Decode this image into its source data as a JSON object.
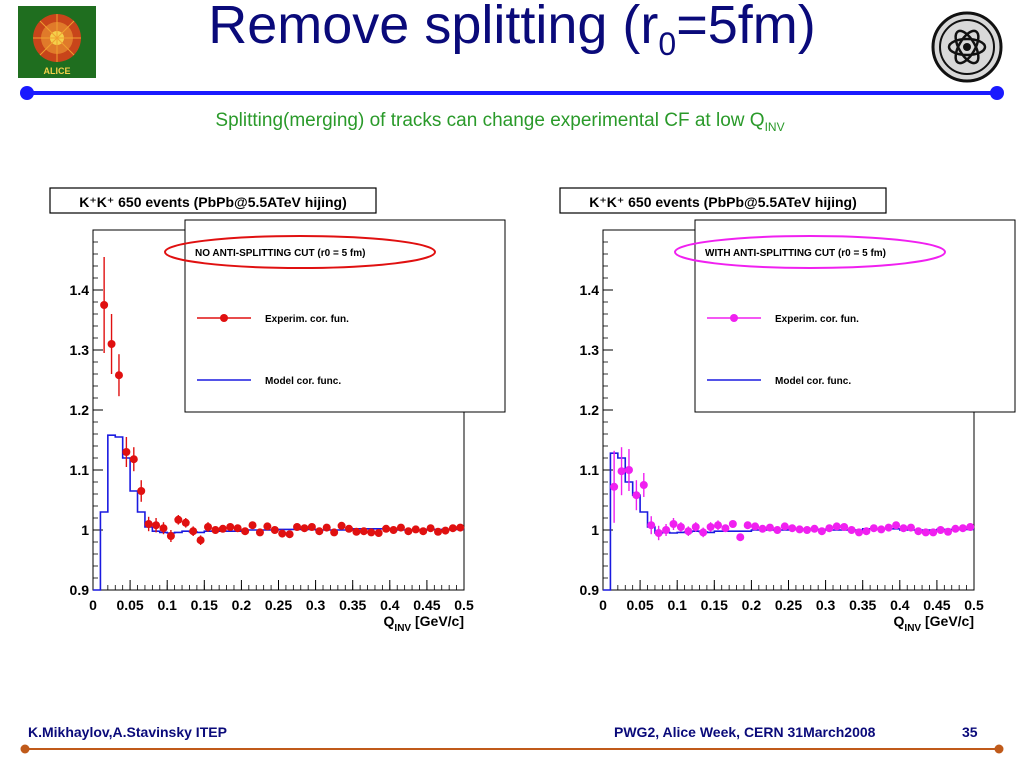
{
  "slide": {
    "title_main": "Remove splitting (r",
    "title_sub": "0",
    "title_end": "=5fm)",
    "subtitle_main": "Splitting(merging) of tracks can change experimental CF at low Q",
    "subtitle_sub": "INV",
    "footer_left": "K.Mikhaylov,A.Stavinsky ITEP",
    "footer_mid": "PWG2, Alice Week, CERN 31March2008",
    "page_number": "35",
    "logo_left_text": "ALICE",
    "colors": {
      "title": "#0a0a7a",
      "subtitle": "#2a9a2a",
      "rule_top": "#1a1aff",
      "rule_bottom": "#c05a1a"
    }
  },
  "chart_data": [
    {
      "type": "scatter",
      "title": "K⁺K⁺ 650 events (PbPb@5.5ATeV hijing)",
      "legend_header": "NO ANTI-SPLITTING CUT (r0 = 5 fm)",
      "xlabel": "Q_INV  [GeV/c]",
      "xlabel_main": "Q",
      "xlabel_sub": "INV",
      "xlabel_unit": "[GeV/c]",
      "xlim": [
        0,
        0.5
      ],
      "ylim": [
        0.9,
        1.5
      ],
      "x_ticks": [
        "0",
        "0.05",
        "0.1",
        "0.15",
        "0.2",
        "0.25",
        "0.3",
        "0.35",
        "0.4",
        "0.45",
        "0.5"
      ],
      "y_ticks": [
        "0.9",
        "1",
        "1.1",
        "1.2",
        "1.3",
        "1.4"
      ],
      "legend_position": "top-right",
      "series": [
        {
          "name": "Experim. cor. fun.",
          "color": "#e01010",
          "x": [
            0.015,
            0.025,
            0.035,
            0.045,
            0.055,
            0.065,
            0.075,
            0.085,
            0.095,
            0.105,
            0.115,
            0.125,
            0.135,
            0.145,
            0.155,
            0.165,
            0.175,
            0.185,
            0.195,
            0.205,
            0.215,
            0.225,
            0.235,
            0.245,
            0.255,
            0.265,
            0.275,
            0.285,
            0.295,
            0.305,
            0.315,
            0.325,
            0.335,
            0.345,
            0.355,
            0.365,
            0.375,
            0.385,
            0.395,
            0.405,
            0.415,
            0.425,
            0.435,
            0.445,
            0.455,
            0.465,
            0.475,
            0.485,
            0.495
          ],
          "y": [
            1.375,
            1.31,
            1.258,
            1.13,
            1.118,
            1.065,
            1.01,
            1.008,
            1.003,
            0.99,
            1.017,
            1.012,
            0.998,
            0.983,
            1.005,
            1.0,
            1.002,
            1.005,
            1.003,
            0.998,
            1.008,
            0.996,
            1.006,
            1.0,
            0.994,
            0.993,
            1.005,
            1.003,
            1.005,
            0.998,
            1.004,
            0.996,
            1.007,
            1.002,
            0.997,
            0.998,
            0.996,
            0.995,
            1.002,
            1.0,
            1.004,
            0.998,
            1.001,
            0.998,
            1.003,
            0.997,
            0.999,
            1.003,
            1.004
          ],
          "err": [
            0.08,
            0.05,
            0.035,
            0.025,
            0.02,
            0.018,
            0.012,
            0.012,
            0.01,
            0.01,
            0.008,
            0.008,
            0.008,
            0.008,
            0.008,
            0.006,
            0.006,
            0.006,
            0.006,
            0.006,
            0.006,
            0.006,
            0.006,
            0.006,
            0.006,
            0.006,
            0.006,
            0.006,
            0.006,
            0.006,
            0.006,
            0.006,
            0.006,
            0.006,
            0.006,
            0.006,
            0.006,
            0.006,
            0.006,
            0.006,
            0.006,
            0.006,
            0.006,
            0.006,
            0.006,
            0.006,
            0.006,
            0.006,
            0.006
          ]
        },
        {
          "name": "Model cor. func.",
          "color": "#1a1ae0",
          "edges": [
            0,
            0.01,
            0.02,
            0.03,
            0.04,
            0.05,
            0.06,
            0.07,
            0.08,
            0.09,
            0.1,
            0.11,
            0.12,
            0.13,
            0.14,
            0.15,
            0.2,
            0.25,
            0.3,
            0.35,
            0.4,
            0.45,
            0.5
          ],
          "y": [
            0.9,
            1.03,
            1.158,
            1.155,
            1.12,
            1.065,
            1.03,
            1.005,
            0.998,
            0.996,
            0.995,
            0.996,
            0.998,
            0.997,
            0.996,
            0.998,
            1.0,
            1.001,
            1.0,
            1.002,
            1.0,
            1.001
          ]
        }
      ]
    },
    {
      "type": "scatter",
      "title": "K⁺K⁺ 650 events (PbPb@5.5ATeV hijing)",
      "legend_header": "WITH ANTI-SPLITTING CUT (r0 = 5 fm)",
      "xlabel": "Q_INV  [GeV/c]",
      "xlabel_main": "Q",
      "xlabel_sub": "INV",
      "xlabel_unit": "[GeV/c]",
      "xlim": [
        0,
        0.5
      ],
      "ylim": [
        0.9,
        1.5
      ],
      "x_ticks": [
        "0",
        "0.05",
        "0.1",
        "0.15",
        "0.2",
        "0.25",
        "0.3",
        "0.35",
        "0.4",
        "0.45",
        "0.5"
      ],
      "y_ticks": [
        "0.9",
        "1",
        "1.1",
        "1.2",
        "1.3",
        "1.4"
      ],
      "legend_position": "top-right",
      "series": [
        {
          "name": "Experim. cor. fun.",
          "color": "#f020f0",
          "x": [
            0.015,
            0.025,
            0.035,
            0.045,
            0.055,
            0.065,
            0.075,
            0.085,
            0.095,
            0.105,
            0.115,
            0.125,
            0.135,
            0.145,
            0.155,
            0.165,
            0.175,
            0.185,
            0.195,
            0.205,
            0.215,
            0.225,
            0.235,
            0.245,
            0.255,
            0.265,
            0.275,
            0.285,
            0.295,
            0.305,
            0.315,
            0.325,
            0.335,
            0.345,
            0.355,
            0.365,
            0.375,
            0.385,
            0.395,
            0.405,
            0.415,
            0.425,
            0.435,
            0.445,
            0.455,
            0.465,
            0.475,
            0.485,
            0.495
          ],
          "y": [
            1.072,
            1.098,
            1.1,
            1.058,
            1.075,
            1.008,
            0.995,
            1.0,
            1.01,
            1.005,
            0.998,
            1.005,
            0.996,
            1.005,
            1.008,
            1.003,
            1.01,
            0.988,
            1.008,
            1.006,
            1.002,
            1.004,
            1.0,
            1.006,
            1.003,
            1.001,
            1.0,
            1.002,
            0.998,
            1.003,
            1.006,
            1.005,
            1.0,
            0.996,
            0.998,
            1.003,
            1.001,
            1.004,
            1.008,
            1.003,
            1.004,
            0.998,
            0.996,
            0.996,
            1.0,
            0.997,
            1.002,
            1.003,
            1.005
          ],
          "err": [
            0.06,
            0.04,
            0.035,
            0.025,
            0.02,
            0.015,
            0.012,
            0.01,
            0.01,
            0.008,
            0.008,
            0.008,
            0.008,
            0.008,
            0.008,
            0.006,
            0.006,
            0.006,
            0.006,
            0.006,
            0.006,
            0.006,
            0.006,
            0.006,
            0.006,
            0.006,
            0.006,
            0.006,
            0.006,
            0.006,
            0.006,
            0.006,
            0.006,
            0.006,
            0.006,
            0.006,
            0.006,
            0.006,
            0.006,
            0.006,
            0.006,
            0.006,
            0.006,
            0.006,
            0.006,
            0.006,
            0.006,
            0.006,
            0.006
          ]
        },
        {
          "name": "Model cor. func.",
          "color": "#1a1ae0",
          "edges": [
            0,
            0.01,
            0.02,
            0.03,
            0.04,
            0.05,
            0.06,
            0.07,
            0.08,
            0.09,
            0.1,
            0.11,
            0.12,
            0.13,
            0.14,
            0.15,
            0.2,
            0.25,
            0.3,
            0.35,
            0.4,
            0.45,
            0.5
          ],
          "y": [
            0.9,
            1.128,
            1.12,
            1.08,
            1.058,
            1.03,
            1.005,
            0.995,
            0.996,
            0.995,
            0.996,
            0.997,
            0.998,
            0.997,
            0.996,
            0.998,
            1.0,
            1.001,
            1.0,
            1.002,
            1.0,
            1.001
          ]
        }
      ]
    }
  ]
}
